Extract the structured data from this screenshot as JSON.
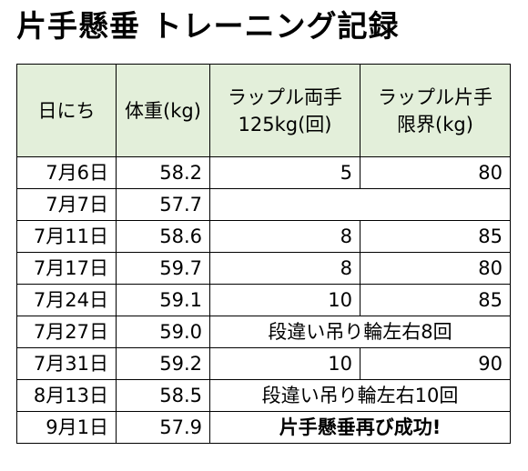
{
  "title": "片手懸垂 トレーニング記録",
  "headers": {
    "date": "日にち",
    "weight": "体重(kg)",
    "both_line1": "ラップル両手",
    "both_line2": "125kg(回)",
    "single_line1": "ラップル片手",
    "single_line2": "限界(kg)"
  },
  "rows": [
    {
      "date": "7月6日",
      "weight": "58.2",
      "both": "5",
      "single": "80"
    },
    {
      "date": "7月7日",
      "weight": "57.7",
      "both": "",
      "single": ""
    },
    {
      "date": "7月11日",
      "weight": "58.6",
      "both": "8",
      "single": "85"
    },
    {
      "date": "7月17日",
      "weight": "59.7",
      "both": "8",
      "single": "80"
    },
    {
      "date": "7月24日",
      "weight": "59.1",
      "both": "10",
      "single": "85"
    },
    {
      "date": "7月27日",
      "weight": "59.0",
      "note": "段違い吊り輪左右8回"
    },
    {
      "date": "7月31日",
      "weight": "59.2",
      "both": "10",
      "single": "90"
    },
    {
      "date": "8月13日",
      "weight": "58.5",
      "note": "段違い吊り輪左右10回"
    },
    {
      "date": "9月1日",
      "weight": "57.9",
      "note": "片手懸垂再び成功!",
      "note_bold": true
    }
  ]
}
